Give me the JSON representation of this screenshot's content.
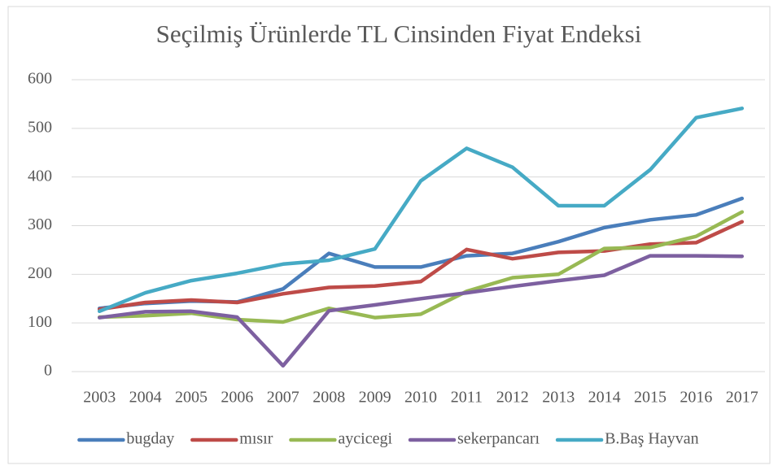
{
  "chart_data": {
    "type": "line",
    "title": "Seçilmiş Ürünlerde TL Cinsinden Fiyat Endeksi",
    "categories": [
      "2003",
      "2004",
      "2005",
      "2006",
      "2007",
      "2008",
      "2009",
      "2010",
      "2011",
      "2012",
      "2013",
      "2014",
      "2015",
      "2016",
      "2017"
    ],
    "series": [
      {
        "name": "bugday",
        "color": "#4a7ebb",
        "values": [
          130,
          140,
          145,
          143,
          170,
          243,
          215,
          215,
          238,
          243,
          267,
          296,
          312,
          322,
          356
        ]
      },
      {
        "name": "mısır",
        "color": "#be4b48",
        "values": [
          128,
          142,
          147,
          142,
          160,
          173,
          176,
          185,
          251,
          232,
          245,
          248,
          262,
          265,
          308
        ]
      },
      {
        "name": "aycicegi",
        "color": "#98b954",
        "values": [
          112,
          115,
          120,
          107,
          102,
          130,
          111,
          118,
          165,
          193,
          200,
          253,
          255,
          278,
          328
        ]
      },
      {
        "name": "sekerpancarı",
        "color": "#7d60a0",
        "values": [
          111,
          123,
          124,
          112,
          12,
          125,
          137,
          150,
          162,
          175,
          187,
          198,
          238,
          238,
          237
        ]
      },
      {
        "name": "B.Baş Hayvan",
        "color": "#46aac5",
        "values": [
          124,
          162,
          187,
          202,
          221,
          229,
          252,
          392,
          459,
          420,
          341,
          341,
          415,
          522,
          541
        ]
      }
    ],
    "ylim": [
      0,
      600
    ],
    "yticks": [
      0,
      100,
      200,
      300,
      400,
      500,
      600
    ],
    "grid": true,
    "legend": "bottom"
  }
}
